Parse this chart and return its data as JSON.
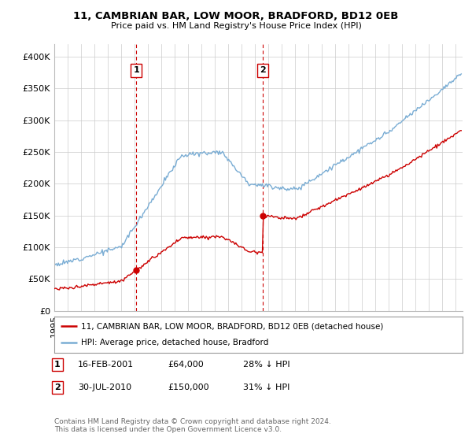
{
  "title": "11, CAMBRIAN BAR, LOW MOOR, BRADFORD, BD12 0EB",
  "subtitle": "Price paid vs. HM Land Registry's House Price Index (HPI)",
  "legend_entry1": "11, CAMBRIAN BAR, LOW MOOR, BRADFORD, BD12 0EB (detached house)",
  "legend_entry2": "HPI: Average price, detached house, Bradford",
  "red_color": "#cc0000",
  "blue_color": "#7aadd4",
  "marker1_date": 2001.12,
  "marker2_date": 2010.58,
  "marker1_value": 64000,
  "marker2_value": 150000,
  "annotation1_date": "16-FEB-2001",
  "annotation1_price": "£64,000",
  "annotation1_hpi": "28% ↓ HPI",
  "annotation2_date": "30-JUL-2010",
  "annotation2_price": "£150,000",
  "annotation2_hpi": "31% ↓ HPI",
  "footnote": "Contains HM Land Registry data © Crown copyright and database right 2024.\nThis data is licensed under the Open Government Licence v3.0.",
  "ylim": [
    0,
    420000
  ],
  "yticks": [
    0,
    50000,
    100000,
    150000,
    200000,
    250000,
    300000,
    350000,
    400000
  ],
  "background_color": "#ffffff",
  "grid_color": "#cccccc",
  "xlim_start": 1995,
  "xlim_end": 2025.5
}
